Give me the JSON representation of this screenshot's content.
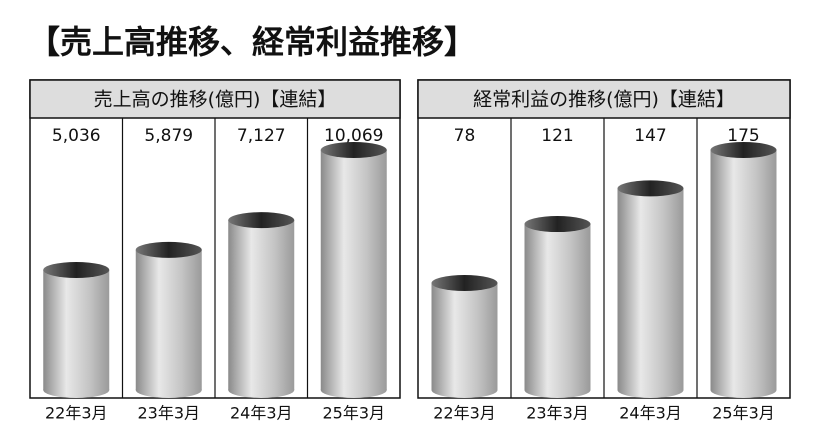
{
  "title": "【売上高推移、経常利益推移】",
  "chart_data": [
    {
      "type": "bar",
      "title": "売上高の推移(億円)【連結】",
      "categories": [
        "22年3月",
        "23年3月",
        "24年3月",
        "25年3月"
      ],
      "values": [
        5036,
        5879,
        7127,
        10069
      ],
      "value_labels": [
        "5,036",
        "5,879",
        "7,127",
        "10,069"
      ]
    },
    {
      "type": "bar",
      "title": "経常利益の推移(億円)【連結】",
      "categories": [
        "22年3月",
        "23年3月",
        "24年3月",
        "25年3月"
      ],
      "values": [
        78,
        121,
        147,
        175
      ]
    }
  ]
}
